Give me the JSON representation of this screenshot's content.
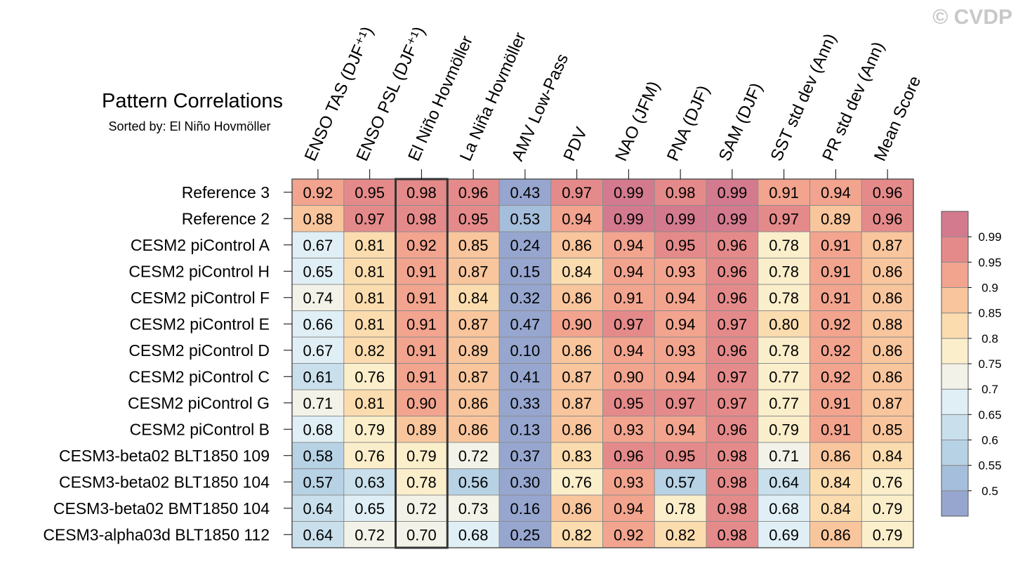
{
  "watermark": "© CVDP",
  "chart_data": {
    "type": "heatmap",
    "title": "Pattern Correlations",
    "subtitle": "Sorted by: El Niño Hovmöller",
    "highlight_column": "El Niño Hovmöller",
    "columns": [
      "ENSO TAS (DJF⁺¹)",
      "ENSO PSL (DJF⁺¹)",
      "El Niño Hovmöller",
      "La Niña Hovmöller",
      "AMV Low-Pass",
      "PDV",
      "NAO (JFM)",
      "PNA (DJF)",
      "SAM (DJF)",
      "SST std dev (Ann)",
      "PR std dev (Ann)",
      "Mean Score"
    ],
    "rows": [
      "Reference 3",
      "Reference 2",
      "CESM2 piControl A",
      "CESM2 piControl H",
      "CESM2 piControl F",
      "CESM2 piControl E",
      "CESM2 piControl D",
      "CESM2 piControl C",
      "CESM2 piControl G",
      "CESM2 piControl B",
      "CESM3-beta02 BLT1850 109",
      "CESM3-beta02 BLT1850 104",
      "CESM3-beta02 BMT1850 104",
      "CESM3-alpha03d BLT1850 112"
    ],
    "values": [
      [
        "0.92",
        "0.95",
        "0.98",
        "0.96",
        "0.43",
        "0.97",
        "0.99",
        "0.98",
        "0.99",
        "0.91",
        "0.94",
        "0.96"
      ],
      [
        "0.88",
        "0.97",
        "0.98",
        "0.95",
        "0.53",
        "0.94",
        "0.99",
        "0.99",
        "0.99",
        "0.97",
        "0.89",
        "0.96"
      ],
      [
        "0.67",
        "0.81",
        "0.92",
        "0.85",
        "0.24",
        "0.86",
        "0.94",
        "0.95",
        "0.96",
        "0.78",
        "0.91",
        "0.87"
      ],
      [
        "0.65",
        "0.81",
        "0.91",
        "0.87",
        "0.15",
        "0.84",
        "0.94",
        "0.93",
        "0.96",
        "0.78",
        "0.91",
        "0.86"
      ],
      [
        "0.74",
        "0.81",
        "0.91",
        "0.84",
        "0.32",
        "0.86",
        "0.91",
        "0.94",
        "0.96",
        "0.78",
        "0.91",
        "0.86"
      ],
      [
        "0.66",
        "0.81",
        "0.91",
        "0.87",
        "0.47",
        "0.90",
        "0.97",
        "0.94",
        "0.97",
        "0.80",
        "0.92",
        "0.88"
      ],
      [
        "0.67",
        "0.82",
        "0.91",
        "0.89",
        "0.10",
        "0.86",
        "0.94",
        "0.93",
        "0.96",
        "0.78",
        "0.92",
        "0.86"
      ],
      [
        "0.61",
        "0.76",
        "0.91",
        "0.87",
        "0.41",
        "0.87",
        "0.90",
        "0.94",
        "0.97",
        "0.77",
        "0.92",
        "0.86"
      ],
      [
        "0.71",
        "0.81",
        "0.90",
        "0.86",
        "0.33",
        "0.87",
        "0.95",
        "0.97",
        "0.97",
        "0.77",
        "0.91",
        "0.87"
      ],
      [
        "0.68",
        "0.79",
        "0.89",
        "0.86",
        "0.13",
        "0.86",
        "0.93",
        "0.94",
        "0.96",
        "0.79",
        "0.91",
        "0.85"
      ],
      [
        "0.58",
        "0.76",
        "0.79",
        "0.72",
        "0.37",
        "0.83",
        "0.96",
        "0.95",
        "0.98",
        "0.71",
        "0.86",
        "0.84"
      ],
      [
        "0.57",
        "0.63",
        "0.78",
        "0.56",
        "0.30",
        "0.76",
        "0.93",
        "0.57",
        "0.98",
        "0.64",
        "0.84",
        "0.76"
      ],
      [
        "0.64",
        "0.65",
        "0.72",
        "0.73",
        "0.16",
        "0.86",
        "0.94",
        "0.78",
        "0.98",
        "0.68",
        "0.84",
        "0.79"
      ],
      [
        "0.64",
        "0.72",
        "0.70",
        "0.68",
        "0.25",
        "0.82",
        "0.92",
        "0.82",
        "0.98",
        "0.69",
        "0.86",
        "0.79"
      ]
    ],
    "colorbar": {
      "labels": [
        "0.99",
        "0.95",
        "0.9",
        "0.85",
        "0.8",
        "0.75",
        "0.7",
        "0.65",
        "0.6",
        "0.55",
        "0.5"
      ],
      "thresholds": [
        0.5,
        0.55,
        0.6,
        0.65,
        0.7,
        0.75,
        0.8,
        0.85,
        0.9,
        0.95,
        0.99
      ],
      "colors": [
        "#96a6cf",
        "#a5bedb",
        "#b7d2e5",
        "#c9e0ec",
        "#e0eff5",
        "#f2f2e8",
        "#fbeecb",
        "#fbdcae",
        "#f8c59c",
        "#f2a48e",
        "#e58a8a",
        "#d37a8f"
      ]
    }
  }
}
